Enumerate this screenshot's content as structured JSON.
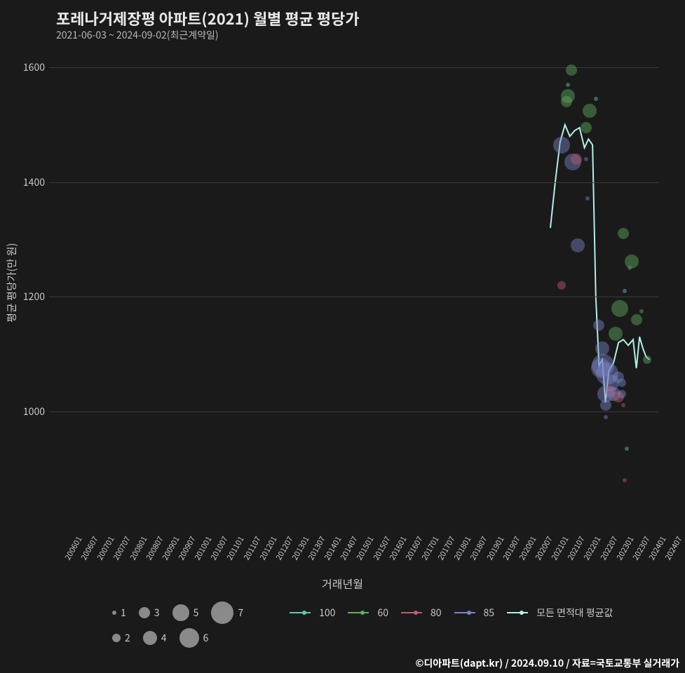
{
  "title": "포레나거제장평 아파트(2021) 월별 평균 평당가",
  "subtitle": "2021-06-03 ~ 2024-09-02(최근계약일)",
  "ylabel": "평균 평당가(만 원)",
  "xlabel": "거래년월",
  "footer": "©디아파트(dapt.kr) / 2024.09.10 / 자료=국토교통부 실거래가",
  "colors": {
    "background": "#1a1a1a",
    "text": "#d0d0d0",
    "grid": "#3a3a3a",
    "line": "#b0f0e8",
    "series": {
      "100": "#5ec9b7",
      "60": "#5fae5f",
      "80": "#c35b6d",
      "85": "#7a84c8",
      "avg": "#b0f0e8"
    }
  },
  "y_axis": {
    "min": 800,
    "max": 1620,
    "ticks": [
      1000,
      1200,
      1400,
      1600
    ]
  },
  "x_axis": {
    "min_index": 0,
    "max_index": 37.6,
    "ticks": [
      "200601",
      "200607",
      "200701",
      "200707",
      "200801",
      "200807",
      "200901",
      "200907",
      "201001",
      "201007",
      "201101",
      "201107",
      "201201",
      "201207",
      "201301",
      "201307",
      "201401",
      "201407",
      "201501",
      "201507",
      "201601",
      "201607",
      "201701",
      "201707",
      "201801",
      "201807",
      "201901",
      "201907",
      "202001",
      "202007",
      "202101",
      "202107",
      "202201",
      "202207",
      "202301",
      "202307",
      "202401",
      "202407"
    ]
  },
  "avg_line": [
    {
      "x": 30.9,
      "y": 1320
    },
    {
      "x": 31.2,
      "y": 1400
    },
    {
      "x": 31.5,
      "y": 1470
    },
    {
      "x": 31.8,
      "y": 1500
    },
    {
      "x": 32.1,
      "y": 1480
    },
    {
      "x": 32.4,
      "y": 1490
    },
    {
      "x": 32.7,
      "y": 1495
    },
    {
      "x": 33.0,
      "y": 1460
    },
    {
      "x": 33.25,
      "y": 1475
    },
    {
      "x": 33.5,
      "y": 1465
    },
    {
      "x": 33.7,
      "y": 1200
    },
    {
      "x": 33.9,
      "y": 1080
    },
    {
      "x": 34.1,
      "y": 1090
    },
    {
      "x": 34.3,
      "y": 1015
    },
    {
      "x": 34.5,
      "y": 1070
    },
    {
      "x": 34.8,
      "y": 1085
    },
    {
      "x": 35.1,
      "y": 1120
    },
    {
      "x": 35.4,
      "y": 1125
    },
    {
      "x": 35.7,
      "y": 1115
    },
    {
      "x": 36.0,
      "y": 1125
    },
    {
      "x": 36.2,
      "y": 1075
    },
    {
      "x": 36.4,
      "y": 1130
    },
    {
      "x": 36.6,
      "y": 1110
    },
    {
      "x": 36.8,
      "y": 1095
    },
    {
      "x": 37.0,
      "y": 1090
    }
  ],
  "bubbles": [
    {
      "x": 31.6,
      "y": 1220,
      "s": 2,
      "c": "80"
    },
    {
      "x": 31.6,
      "y": 1465,
      "s": 5,
      "c": "85"
    },
    {
      "x": 31.9,
      "y": 1540,
      "s": 3,
      "c": "60"
    },
    {
      "x": 32.0,
      "y": 1550,
      "s": 4,
      "c": "60"
    },
    {
      "x": 32.2,
      "y": 1595,
      "s": 3,
      "c": "60"
    },
    {
      "x": 32.0,
      "y": 1570,
      "s": 1,
      "c": "100"
    },
    {
      "x": 32.3,
      "y": 1435,
      "s": 5,
      "c": "85"
    },
    {
      "x": 32.5,
      "y": 1440,
      "s": 3,
      "c": "80"
    },
    {
      "x": 32.6,
      "y": 1290,
      "s": 4,
      "c": "85"
    },
    {
      "x": 33.1,
      "y": 1495,
      "s": 3,
      "c": "60"
    },
    {
      "x": 33.1,
      "y": 1440,
      "s": 1,
      "c": "85"
    },
    {
      "x": 33.3,
      "y": 1525,
      "s": 4,
      "c": "60"
    },
    {
      "x": 33.2,
      "y": 1372,
      "s": 1,
      "c": "85"
    },
    {
      "x": 33.7,
      "y": 1545,
      "s": 1,
      "c": "100"
    },
    {
      "x": 33.9,
      "y": 1150,
      "s": 3,
      "c": "85"
    },
    {
      "x": 34.0,
      "y": 1075,
      "s": 6,
      "c": "85"
    },
    {
      "x": 34.1,
      "y": 1110,
      "s": 4,
      "c": "85"
    },
    {
      "x": 34.15,
      "y": 1080,
      "s": 7,
      "c": "85"
    },
    {
      "x": 34.3,
      "y": 1030,
      "s": 5,
      "c": "85"
    },
    {
      "x": 34.3,
      "y": 1010,
      "s": 3,
      "c": "85"
    },
    {
      "x": 34.3,
      "y": 990,
      "s": 1,
      "c": "85"
    },
    {
      "x": 34.4,
      "y": 1065,
      "s": 7,
      "c": "85"
    },
    {
      "x": 34.6,
      "y": 1050,
      "s": 5,
      "c": "85"
    },
    {
      "x": 34.6,
      "y": 1035,
      "s": 3,
      "c": "80"
    },
    {
      "x": 34.8,
      "y": 1030,
      "s": 4,
      "c": "85"
    },
    {
      "x": 34.9,
      "y": 1135,
      "s": 4,
      "c": "60"
    },
    {
      "x": 35.1,
      "y": 1060,
      "s": 3,
      "c": "85"
    },
    {
      "x": 35.1,
      "y": 1025,
      "s": 3,
      "c": "80"
    },
    {
      "x": 35.2,
      "y": 1180,
      "s": 5,
      "c": "60"
    },
    {
      "x": 35.3,
      "y": 1030,
      "s": 2,
      "c": "85"
    },
    {
      "x": 35.3,
      "y": 1050,
      "s": 2,
      "c": "85"
    },
    {
      "x": 35.4,
      "y": 1010,
      "s": 1,
      "c": "80"
    },
    {
      "x": 35.5,
      "y": 880,
      "s": 1,
      "c": "80"
    },
    {
      "x": 35.6,
      "y": 935,
      "s": 1,
      "c": "100"
    },
    {
      "x": 35.4,
      "y": 1310,
      "s": 3,
      "c": "60"
    },
    {
      "x": 35.5,
      "y": 1210,
      "s": 1,
      "c": "100"
    },
    {
      "x": 35.8,
      "y": 1250,
      "s": 1,
      "c": "60"
    },
    {
      "x": 35.9,
      "y": 1262,
      "s": 4,
      "c": "60"
    },
    {
      "x": 36.2,
      "y": 1160,
      "s": 3,
      "c": "60"
    },
    {
      "x": 36.5,
      "y": 1175,
      "s": 1,
      "c": "60"
    },
    {
      "x": 36.85,
      "y": 1090,
      "s": 2,
      "c": "60"
    }
  ],
  "size_legend": [
    {
      "label": "1",
      "r": 3
    },
    {
      "label": "3",
      "r": 8
    },
    {
      "label": "5",
      "r": 12
    },
    {
      "label": "7",
      "r": 16
    },
    {
      "label": "2",
      "r": 6
    },
    {
      "label": "4",
      "r": 10
    },
    {
      "label": "6",
      "r": 14
    }
  ],
  "color_legend": [
    {
      "key": "100",
      "label": "100"
    },
    {
      "key": "60",
      "label": "60"
    },
    {
      "key": "80",
      "label": "80"
    },
    {
      "key": "85",
      "label": "85"
    },
    {
      "key": "avg",
      "label": "모든 면적대 평균값"
    }
  ]
}
